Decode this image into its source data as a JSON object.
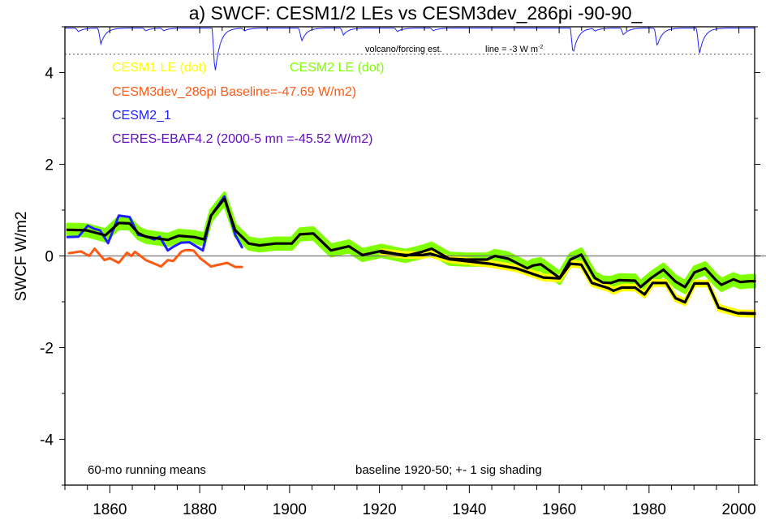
{
  "chart_data": {
    "type": "line",
    "title": "a) SWCF: CESM1/2 LEs vs CESM3dev_286pi -90-90_",
    "xlabel": "",
    "ylabel": "SWCF W/m2",
    "xlim": [
      1850,
      2003.5
    ],
    "ylim": [
      -5,
      5
    ],
    "xticks": [
      1860,
      1880,
      1900,
      1920,
      1940,
      1960,
      1980,
      2000
    ],
    "xtick_labels": [
      "1860",
      "1880",
      "1900",
      "1920",
      "1940",
      "1960",
      "1980",
      "2000"
    ],
    "yticks": [
      4,
      2,
      0,
      -2,
      -4
    ],
    "ytick_labels": [
      "4",
      "2",
      "0",
      "-2",
      "-4"
    ],
    "zero_line": 0,
    "grid": false,
    "legend": [
      {
        "label": "CESM1 LE (dot)",
        "color": "#ffff00"
      },
      {
        "label": "CESM2 LE (dot)",
        "color": "#80ff00"
      },
      {
        "label": "CESM3dev_286pi Baseline=-47.69 W/m2)",
        "color": "#ff5a14"
      },
      {
        "label": "CESM2_1",
        "color": "#1e1eff"
      },
      {
        "label": "CERES-EBAF4.2 (2000-5 mn =-45.52 W/m2)",
        "color": "#6010c0"
      }
    ],
    "annotations": {
      "running_mean": "60-mo running means",
      "baseline": "baseline 1920-50; +- 1 sig shading",
      "volcano_label": "volcano/forcing est.",
      "volcano_line_label": "line = -3 W m",
      "volcano_line_unit_sup": "-2"
    },
    "series": [
      {
        "name": "CESM2 LE (dot)",
        "color": "#000000",
        "band_color": "#80ff00",
        "band_sigma": 0.12,
        "x": [
          1850.6,
          1854.8,
          1859,
          1860.2,
          1862,
          1864.4,
          1866.3,
          1868,
          1872.9,
          1875.3,
          1878.9,
          1881,
          1882.5,
          1885.5,
          1887.9,
          1890.9,
          1893.3,
          1896.9,
          1900.5,
          1902.3,
          1905.3,
          1909.2,
          1913.2,
          1916.2,
          1920.4,
          1925.8,
          1929.5,
          1931.6,
          1935.5,
          1939.1,
          1943.9,
          1945.7,
          1948.7,
          1952.9,
          1954.1,
          1955.9,
          1960.1,
          1962.5,
          1964.9,
          1967.9,
          1969.7,
          1971.5,
          1973.3,
          1976.9,
          1978.1,
          1980.5,
          1983.2,
          1985.9,
          1988,
          1990.1,
          1992.5,
          1994.9,
          1996.1,
          1998.8,
          2000.3,
          2002.4,
          2003.5
        ],
        "y": [
          0.57,
          0.56,
          0.45,
          0.56,
          0.72,
          0.71,
          0.5,
          0.42,
          0.35,
          0.44,
          0.41,
          0.36,
          0.88,
          1.25,
          0.56,
          0.27,
          0.23,
          0.27,
          0.27,
          0.47,
          0.49,
          0.12,
          0.21,
          0.02,
          0.11,
          0.0,
          0.09,
          0.16,
          -0.06,
          -0.08,
          -0.08,
          0.0,
          -0.06,
          -0.27,
          -0.21,
          -0.18,
          -0.48,
          -0.08,
          0.03,
          -0.48,
          -0.58,
          -0.59,
          -0.53,
          -0.54,
          -0.68,
          -0.48,
          -0.3,
          -0.56,
          -0.68,
          -0.36,
          -0.27,
          -0.53,
          -0.63,
          -0.51,
          -0.57,
          -0.55,
          -0.55
        ]
      },
      {
        "name": "CESM1 LE (dot)",
        "color": "#000000",
        "band_color": "#ffff00",
        "band_sigma": 0.05,
        "x": [
          1920.4,
          1925.8,
          1929.5,
          1931.3,
          1935.5,
          1944.5,
          1950.5,
          1956.5,
          1960.1,
          1962.5,
          1964.9,
          1967.3,
          1970.9,
          1972.1,
          1973.9,
          1976.9,
          1979,
          1980.8,
          1983.8,
          1985.9,
          1988,
          1990.1,
          1993.1,
          1995.5,
          1999.7,
          2002.4,
          2003.5
        ],
        "y": [
          0.08,
          0.02,
          0.02,
          0.05,
          -0.07,
          -0.17,
          -0.27,
          -0.47,
          -0.49,
          -0.17,
          -0.19,
          -0.59,
          -0.7,
          -0.76,
          -0.69,
          -0.69,
          -0.84,
          -0.59,
          -0.59,
          -0.92,
          -1.01,
          -0.6,
          -0.6,
          -1.13,
          -1.25,
          -1.26,
          -1.26
        ]
      },
      {
        "name": "CESM3dev_286pi",
        "color": "#ff5a14",
        "x": [
          1850.9,
          1853.6,
          1855.4,
          1856.6,
          1858.8,
          1860,
          1862,
          1863.8,
          1864.8,
          1865.6,
          1868,
          1871.4,
          1872.9,
          1874.1,
          1875.9,
          1876.8,
          1878.6,
          1880.1,
          1882.5,
          1886.1,
          1887.9,
          1889.4
        ],
        "y": [
          0.06,
          0.1,
          0.0,
          0.16,
          -0.09,
          -0.05,
          -0.15,
          0.07,
          0.0,
          0.09,
          -0.09,
          -0.23,
          -0.09,
          -0.11,
          0.09,
          0.13,
          0.12,
          -0.05,
          -0.23,
          -0.15,
          -0.24,
          -0.24
        ]
      },
      {
        "name": "CESM2_1",
        "color": "#1e1eff",
        "x": [
          1850.6,
          1853,
          1855.1,
          1856.6,
          1857.8,
          1859.6,
          1862,
          1864.4,
          1866.3,
          1868,
          1869.9,
          1871.1,
          1872.9,
          1874.1,
          1875.9,
          1877.7,
          1880.7,
          1882.5,
          1885.5,
          1887.9,
          1889.4
        ],
        "y": [
          0.41,
          0.42,
          0.66,
          0.59,
          0.56,
          0.28,
          0.88,
          0.85,
          0.46,
          0.43,
          0.36,
          0.42,
          0.12,
          0.2,
          0.29,
          0.3,
          0.12,
          0.88,
          1.3,
          0.46,
          0.19
        ]
      },
      {
        "name": "CERES-EBAF4.2",
        "color": "#6010c0",
        "x": [
          2000.5,
          2003.5
        ],
        "y": [
          -1.24,
          -1.25
        ]
      }
    ],
    "volcano": {
      "color": "#2020ff",
      "baseline_plot_y": 4.97,
      "plot_units_per_Wm2": 0.19,
      "reference_line_Wm2": -3,
      "events": [
        [
          1853,
          -0.4
        ],
        [
          1858,
          -1.8
        ],
        [
          1868,
          -0.3
        ],
        [
          1872,
          -0.3
        ],
        [
          1883.4,
          -5.3
        ],
        [
          1890,
          -0.3
        ],
        [
          1902.7,
          -1.5
        ],
        [
          1912,
          -0.8
        ],
        [
          1924,
          -0.4
        ],
        [
          1932,
          -0.3
        ],
        [
          1963.1,
          -3.0
        ],
        [
          1968,
          -0.3
        ],
        [
          1974.3,
          -0.8
        ],
        [
          1981.8,
          -2.1
        ],
        [
          1991.2,
          -3.0
        ]
      ]
    }
  }
}
